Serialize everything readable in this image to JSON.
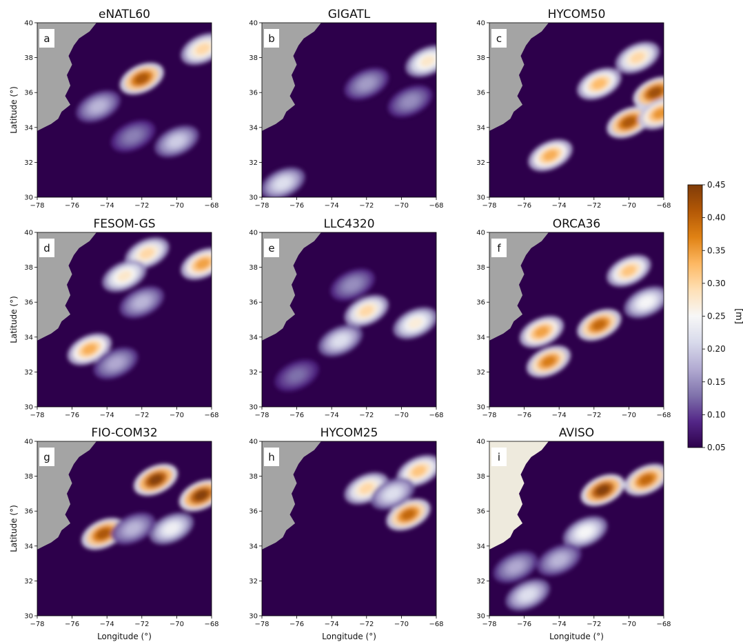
{
  "figure": {
    "x_axis_label": "Longitude (°)",
    "y_axis_label": "Latitude (°)",
    "x_ticks": [
      "−78",
      "−76",
      "−74",
      "−72",
      "−70",
      "−68"
    ],
    "y_ticks": [
      "30",
      "32",
      "34",
      "36",
      "38",
      "40"
    ],
    "colorbar": {
      "label": "[m]",
      "ticks": [
        "0.45",
        "0.40",
        "0.35",
        "0.30",
        "0.25",
        "0.20",
        "0.15",
        "0.10",
        "0.05"
      ]
    }
  },
  "chart_data": [
    {
      "type": "heatmap",
      "panel_label": "a",
      "title": "eNATL60",
      "xlim": [
        -78,
        -68
      ],
      "ylim": [
        30,
        40
      ],
      "vlim": [
        0.05,
        0.45
      ],
      "features": [
        {
          "lon": -72.0,
          "lat": 36.8,
          "value": 0.42
        },
        {
          "lon": -68.5,
          "lat": 38.5,
          "value": 0.3
        },
        {
          "lon": -74.5,
          "lat": 35.2,
          "value": 0.18
        },
        {
          "lon": -70.0,
          "lat": 33.2,
          "value": 0.2
        },
        {
          "lon": -72.5,
          "lat": 33.5,
          "value": 0.14
        }
      ]
    },
    {
      "type": "heatmap",
      "panel_label": "b",
      "title": "GIGATL",
      "xlim": [
        -78,
        -68
      ],
      "ylim": [
        30,
        40
      ],
      "vlim": [
        0.05,
        0.45
      ],
      "features": [
        {
          "lon": -72.0,
          "lat": 36.5,
          "value": 0.16
        },
        {
          "lon": -68.5,
          "lat": 37.8,
          "value": 0.28
        },
        {
          "lon": -76.8,
          "lat": 30.8,
          "value": 0.22
        },
        {
          "lon": -69.5,
          "lat": 35.5,
          "value": 0.15
        }
      ]
    },
    {
      "type": "heatmap",
      "panel_label": "c",
      "title": "HYCOM50",
      "xlim": [
        -78,
        -68
      ],
      "ylim": [
        30,
        40
      ],
      "vlim": [
        0.05,
        0.45
      ],
      "features": [
        {
          "lon": -68.5,
          "lat": 36.0,
          "value": 0.43
        },
        {
          "lon": -70.0,
          "lat": 34.3,
          "value": 0.42
        },
        {
          "lon": -74.5,
          "lat": 32.4,
          "value": 0.34
        },
        {
          "lon": -71.7,
          "lat": 36.5,
          "value": 0.33
        },
        {
          "lon": -69.5,
          "lat": 38.0,
          "value": 0.3
        },
        {
          "lon": -68.2,
          "lat": 34.8,
          "value": 0.36
        }
      ]
    },
    {
      "type": "heatmap",
      "panel_label": "d",
      "title": "FESOM-GS",
      "xlim": [
        -78,
        -68
      ],
      "ylim": [
        30,
        40
      ],
      "vlim": [
        0.05,
        0.45
      ],
      "features": [
        {
          "lon": -75.0,
          "lat": 33.3,
          "value": 0.34
        },
        {
          "lon": -68.5,
          "lat": 38.2,
          "value": 0.35
        },
        {
          "lon": -71.7,
          "lat": 38.8,
          "value": 0.3
        },
        {
          "lon": -73.0,
          "lat": 37.5,
          "value": 0.28
        },
        {
          "lon": -72.0,
          "lat": 36.0,
          "value": 0.18
        },
        {
          "lon": -73.5,
          "lat": 32.5,
          "value": 0.17
        }
      ]
    },
    {
      "type": "heatmap",
      "panel_label": "e",
      "title": "LLC4320",
      "xlim": [
        -78,
        -68
      ],
      "ylim": [
        30,
        40
      ],
      "vlim": [
        0.05,
        0.45
      ],
      "features": [
        {
          "lon": -72.0,
          "lat": 35.5,
          "value": 0.3
        },
        {
          "lon": -69.2,
          "lat": 34.8,
          "value": 0.27
        },
        {
          "lon": -73.5,
          "lat": 33.8,
          "value": 0.22
        },
        {
          "lon": -72.8,
          "lat": 37.0,
          "value": 0.15
        },
        {
          "lon": -76.0,
          "lat": 31.8,
          "value": 0.13
        }
      ]
    },
    {
      "type": "heatmap",
      "panel_label": "f",
      "title": "ORCA36",
      "xlim": [
        -78,
        -68
      ],
      "ylim": [
        30,
        40
      ],
      "vlim": [
        0.05,
        0.45
      ],
      "features": [
        {
          "lon": -71.7,
          "lat": 34.7,
          "value": 0.4
        },
        {
          "lon": -74.6,
          "lat": 32.6,
          "value": 0.38
        },
        {
          "lon": -75.0,
          "lat": 34.3,
          "value": 0.35
        },
        {
          "lon": -70.0,
          "lat": 37.8,
          "value": 0.32
        },
        {
          "lon": -69.0,
          "lat": 36.0,
          "value": 0.25
        }
      ]
    },
    {
      "type": "heatmap",
      "panel_label": "g",
      "title": "FIO-COM32",
      "xlim": [
        -78,
        -68
      ],
      "ylim": [
        30,
        40
      ],
      "vlim": [
        0.05,
        0.45
      ],
      "features": [
        {
          "lon": -71.2,
          "lat": 37.8,
          "value": 0.45
        },
        {
          "lon": -68.6,
          "lat": 36.9,
          "value": 0.45
        },
        {
          "lon": -74.2,
          "lat": 34.7,
          "value": 0.42
        },
        {
          "lon": -70.3,
          "lat": 35.0,
          "value": 0.24
        },
        {
          "lon": -72.5,
          "lat": 35.0,
          "value": 0.18
        }
      ]
    },
    {
      "type": "heatmap",
      "panel_label": "h",
      "title": "HYCOM25",
      "xlim": [
        -78,
        -68
      ],
      "ylim": [
        30,
        40
      ],
      "vlim": [
        0.05,
        0.45
      ],
      "features": [
        {
          "lon": -69.6,
          "lat": 35.8,
          "value": 0.4
        },
        {
          "lon": -69.0,
          "lat": 38.3,
          "value": 0.32
        },
        {
          "lon": -72.0,
          "lat": 37.3,
          "value": 0.3
        },
        {
          "lon": -70.5,
          "lat": 37.0,
          "value": 0.22
        }
      ]
    },
    {
      "type": "heatmap",
      "panel_label": "i",
      "title": "AVISO",
      "xlim": [
        -78,
        -68
      ],
      "ylim": [
        30,
        40
      ],
      "vlim": [
        0.05,
        0.45
      ],
      "features": [
        {
          "lon": -71.5,
          "lat": 37.2,
          "value": 0.45
        },
        {
          "lon": -69.0,
          "lat": 37.8,
          "value": 0.4
        },
        {
          "lon": -72.5,
          "lat": 34.8,
          "value": 0.25
        },
        {
          "lon": -75.8,
          "lat": 31.2,
          "value": 0.22
        },
        {
          "lon": -74.0,
          "lat": 33.2,
          "value": 0.18
        },
        {
          "lon": -76.5,
          "lat": 32.8,
          "value": 0.17
        }
      ]
    }
  ],
  "colors": {
    "land": "#a4a4a4",
    "land_aviso": "#eeeadd",
    "colormap": [
      "#2d004b",
      "#542788",
      "#8073ac",
      "#b2abd2",
      "#d8daeb",
      "#f7f7f7",
      "#fee0b6",
      "#fdb863",
      "#e08214",
      "#b35806",
      "#7f3b08"
    ]
  }
}
